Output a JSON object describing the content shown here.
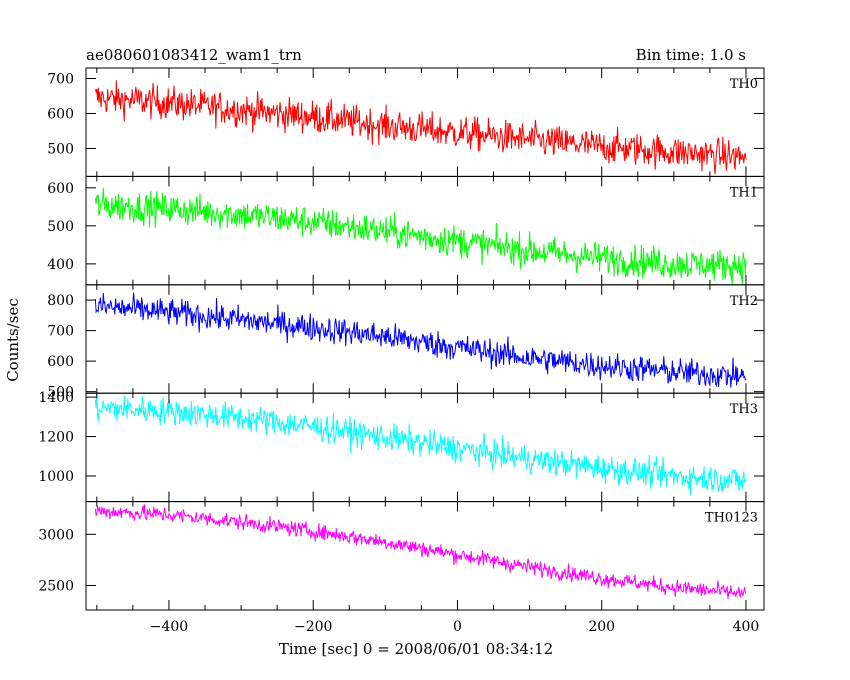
{
  "chart_data": {
    "type": "line",
    "title": "ae080601083412_wam1_trn",
    "bin_time_label": "Bin time: 1.0 s",
    "xlabel": "Time [sec] 0 = 2008/06/01 08:34:12",
    "ylabel": "Counts/sec",
    "x_range": [
      -515,
      425
    ],
    "x_ticks": [
      -400,
      -200,
      0,
      200,
      400
    ],
    "x_tick_labels": [
      "−400",
      "−200",
      "0",
      "200",
      "400"
    ],
    "data_x_range": [
      -502,
      400
    ],
    "panels": [
      {
        "name": "TH0",
        "color": "#ff0000",
        "y_range": [
          420,
          730
        ],
        "y_ticks": [
          500,
          600,
          700
        ],
        "y_tick_labels": [
          "500",
          "600",
          "700"
        ],
        "trend": [
          [
            -500,
            645
          ],
          [
            -400,
            630
          ],
          [
            -300,
            610
          ],
          [
            -200,
            590
          ],
          [
            -100,
            565
          ],
          [
            0,
            545
          ],
          [
            100,
            525
          ],
          [
            200,
            505
          ],
          [
            300,
            490
          ],
          [
            400,
            475
          ]
        ],
        "noise": 34
      },
      {
        "name": "TH1",
        "color": "#00ff00",
        "y_range": [
          345,
          630
        ],
        "y_ticks": [
          400,
          500,
          600
        ],
        "y_tick_labels": [
          "400",
          "500",
          "600"
        ],
        "trend": [
          [
            -500,
            555
          ],
          [
            -400,
            545
          ],
          [
            -300,
            530
          ],
          [
            -200,
            510
          ],
          [
            -100,
            485
          ],
          [
            0,
            460
          ],
          [
            100,
            435
          ],
          [
            200,
            415
          ],
          [
            300,
            400
          ],
          [
            400,
            395
          ]
        ],
        "noise": 30
      },
      {
        "name": "TH2",
        "color": "#0000ff",
        "y_range": [
          495,
          850
        ],
        "y_ticks": [
          500,
          600,
          700,
          800
        ],
        "y_tick_labels": [
          "500",
          "600",
          "700",
          "800"
        ],
        "trend": [
          [
            -500,
            780
          ],
          [
            -400,
            760
          ],
          [
            -300,
            735
          ],
          [
            -200,
            710
          ],
          [
            -100,
            680
          ],
          [
            0,
            645
          ],
          [
            100,
            610
          ],
          [
            200,
            585
          ],
          [
            300,
            565
          ],
          [
            400,
            550
          ]
        ],
        "noise": 32
      },
      {
        "name": "TH3",
        "color": "#00ffff",
        "y_range": [
          870,
          1420
        ],
        "y_ticks": [
          1000,
          1200,
          1400
        ],
        "y_tick_labels": [
          "1000",
          "1200",
          "1400"
        ],
        "trend": [
          [
            -500,
            1345
          ],
          [
            -400,
            1330
          ],
          [
            -300,
            1295
          ],
          [
            -200,
            1250
          ],
          [
            -100,
            1195
          ],
          [
            0,
            1140
          ],
          [
            100,
            1085
          ],
          [
            200,
            1040
          ],
          [
            300,
            1000
          ],
          [
            400,
            975
          ]
        ],
        "noise": 50
      },
      {
        "name": "TH0123",
        "color": "#ff00ff",
        "y_range": [
          2260,
          3320
        ],
        "y_ticks": [
          2500,
          3000
        ],
        "y_tick_labels": [
          "2500",
          "3000"
        ],
        "trend": [
          [
            -500,
            3230
          ],
          [
            -400,
            3190
          ],
          [
            -300,
            3120
          ],
          [
            -200,
            3030
          ],
          [
            -100,
            2925
          ],
          [
            0,
            2800
          ],
          [
            100,
            2680
          ],
          [
            200,
            2570
          ],
          [
            300,
            2480
          ],
          [
            400,
            2420
          ]
        ],
        "noise": 55
      }
    ]
  }
}
